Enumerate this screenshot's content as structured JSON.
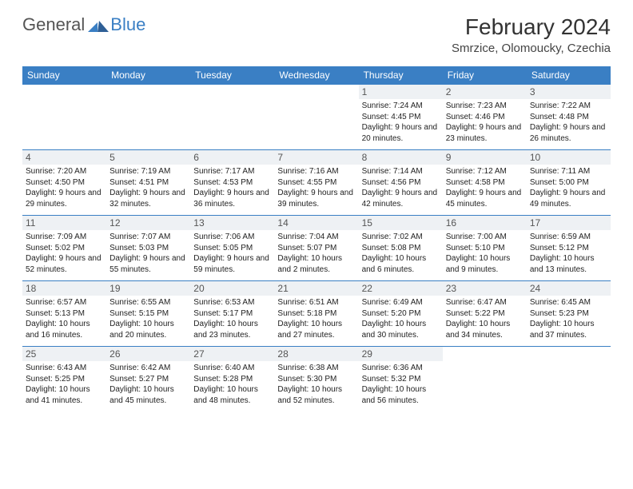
{
  "brand": {
    "first": "General",
    "second": "Blue"
  },
  "title": "February 2024",
  "location": "Smrzice, Olomoucky, Czechia",
  "colors": {
    "header_bg": "#3a7fc4",
    "stripe_bg": "#eef1f4",
    "text": "#222222",
    "page_bg": "#ffffff"
  },
  "dayNames": [
    "Sunday",
    "Monday",
    "Tuesday",
    "Wednesday",
    "Thursday",
    "Friday",
    "Saturday"
  ],
  "startOffset": 4,
  "days": [
    {
      "n": 1,
      "sunrise": "7:24 AM",
      "sunset": "4:45 PM",
      "daylight": "9 hours and 20 minutes."
    },
    {
      "n": 2,
      "sunrise": "7:23 AM",
      "sunset": "4:46 PM",
      "daylight": "9 hours and 23 minutes."
    },
    {
      "n": 3,
      "sunrise": "7:22 AM",
      "sunset": "4:48 PM",
      "daylight": "9 hours and 26 minutes."
    },
    {
      "n": 4,
      "sunrise": "7:20 AM",
      "sunset": "4:50 PM",
      "daylight": "9 hours and 29 minutes."
    },
    {
      "n": 5,
      "sunrise": "7:19 AM",
      "sunset": "4:51 PM",
      "daylight": "9 hours and 32 minutes."
    },
    {
      "n": 6,
      "sunrise": "7:17 AM",
      "sunset": "4:53 PM",
      "daylight": "9 hours and 36 minutes."
    },
    {
      "n": 7,
      "sunrise": "7:16 AM",
      "sunset": "4:55 PM",
      "daylight": "9 hours and 39 minutes."
    },
    {
      "n": 8,
      "sunrise": "7:14 AM",
      "sunset": "4:56 PM",
      "daylight": "9 hours and 42 minutes."
    },
    {
      "n": 9,
      "sunrise": "7:12 AM",
      "sunset": "4:58 PM",
      "daylight": "9 hours and 45 minutes."
    },
    {
      "n": 10,
      "sunrise": "7:11 AM",
      "sunset": "5:00 PM",
      "daylight": "9 hours and 49 minutes."
    },
    {
      "n": 11,
      "sunrise": "7:09 AM",
      "sunset": "5:02 PM",
      "daylight": "9 hours and 52 minutes."
    },
    {
      "n": 12,
      "sunrise": "7:07 AM",
      "sunset": "5:03 PM",
      "daylight": "9 hours and 55 minutes."
    },
    {
      "n": 13,
      "sunrise": "7:06 AM",
      "sunset": "5:05 PM",
      "daylight": "9 hours and 59 minutes."
    },
    {
      "n": 14,
      "sunrise": "7:04 AM",
      "sunset": "5:07 PM",
      "daylight": "10 hours and 2 minutes."
    },
    {
      "n": 15,
      "sunrise": "7:02 AM",
      "sunset": "5:08 PM",
      "daylight": "10 hours and 6 minutes."
    },
    {
      "n": 16,
      "sunrise": "7:00 AM",
      "sunset": "5:10 PM",
      "daylight": "10 hours and 9 minutes."
    },
    {
      "n": 17,
      "sunrise": "6:59 AM",
      "sunset": "5:12 PM",
      "daylight": "10 hours and 13 minutes."
    },
    {
      "n": 18,
      "sunrise": "6:57 AM",
      "sunset": "5:13 PM",
      "daylight": "10 hours and 16 minutes."
    },
    {
      "n": 19,
      "sunrise": "6:55 AM",
      "sunset": "5:15 PM",
      "daylight": "10 hours and 20 minutes."
    },
    {
      "n": 20,
      "sunrise": "6:53 AM",
      "sunset": "5:17 PM",
      "daylight": "10 hours and 23 minutes."
    },
    {
      "n": 21,
      "sunrise": "6:51 AM",
      "sunset": "5:18 PM",
      "daylight": "10 hours and 27 minutes."
    },
    {
      "n": 22,
      "sunrise": "6:49 AM",
      "sunset": "5:20 PM",
      "daylight": "10 hours and 30 minutes."
    },
    {
      "n": 23,
      "sunrise": "6:47 AM",
      "sunset": "5:22 PM",
      "daylight": "10 hours and 34 minutes."
    },
    {
      "n": 24,
      "sunrise": "6:45 AM",
      "sunset": "5:23 PM",
      "daylight": "10 hours and 37 minutes."
    },
    {
      "n": 25,
      "sunrise": "6:43 AM",
      "sunset": "5:25 PM",
      "daylight": "10 hours and 41 minutes."
    },
    {
      "n": 26,
      "sunrise": "6:42 AM",
      "sunset": "5:27 PM",
      "daylight": "10 hours and 45 minutes."
    },
    {
      "n": 27,
      "sunrise": "6:40 AM",
      "sunset": "5:28 PM",
      "daylight": "10 hours and 48 minutes."
    },
    {
      "n": 28,
      "sunrise": "6:38 AM",
      "sunset": "5:30 PM",
      "daylight": "10 hours and 52 minutes."
    },
    {
      "n": 29,
      "sunrise": "6:36 AM",
      "sunset": "5:32 PM",
      "daylight": "10 hours and 56 minutes."
    }
  ]
}
